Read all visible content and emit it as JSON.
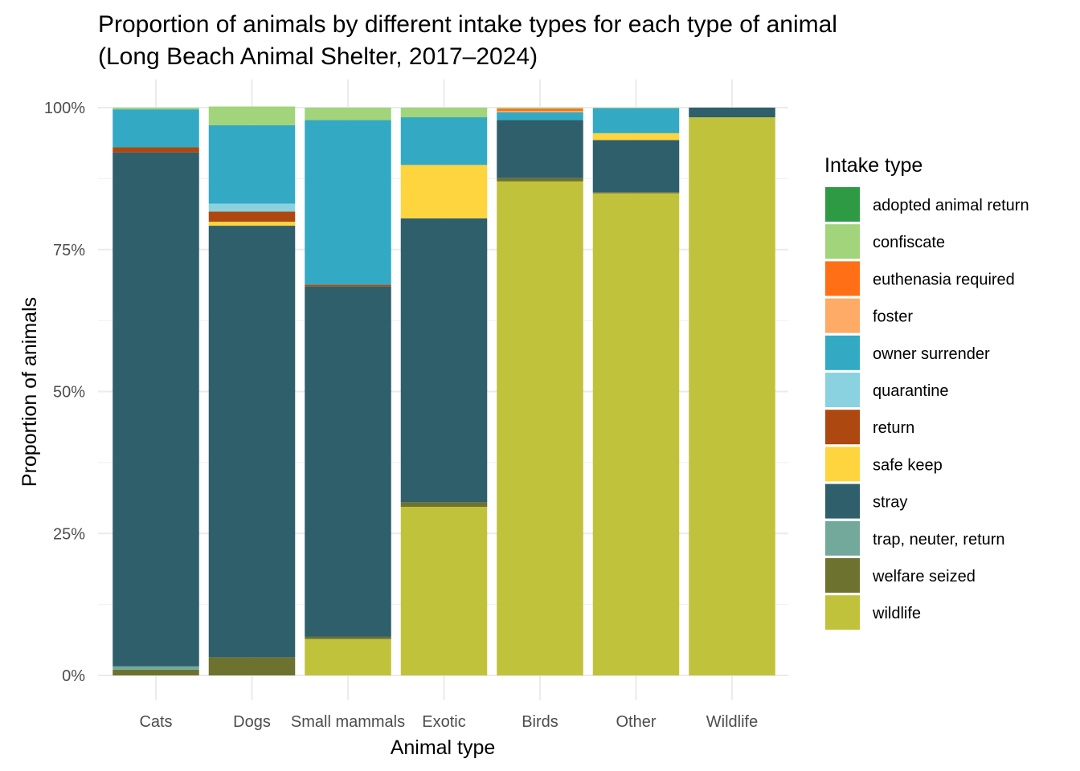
{
  "chart_data": {
    "type": "bar",
    "stacked": true,
    "normalized": true,
    "title": "Proportion of animals by different intake types for each type of animal",
    "subtitle": "(Long Beach Animal Shelter, 2017–2024)",
    "xlabel": "Animal type",
    "ylabel": "Proportion of animals",
    "ylim": [
      0,
      1
    ],
    "y_ticks": [
      "0%",
      "25%",
      "50%",
      "75%",
      "100%"
    ],
    "grid": true,
    "legend_title": "Intake type",
    "legend_position": "right",
    "categories": [
      "Cats",
      "Dogs",
      "Small mammals",
      "Exotic",
      "Birds",
      "Other",
      "Wildlife"
    ],
    "series": [
      {
        "name": "adopted animal return",
        "color": "#2e9a43",
        "values": [
          0.0,
          0.0,
          0.0,
          0.0,
          0.0,
          0.0,
          0.0
        ]
      },
      {
        "name": "confiscate",
        "color": "#a1d47b",
        "values": [
          0.003,
          0.033,
          0.022,
          0.017,
          0.002,
          0.001,
          0.0
        ]
      },
      {
        "name": "euthenasia required",
        "color": "#ff6f15",
        "values": [
          0.0,
          0.0,
          0.0,
          0.0,
          0.004,
          0.0,
          0.0
        ]
      },
      {
        "name": "foster",
        "color": "#fdab66",
        "values": [
          0.0,
          0.0,
          0.0,
          0.0,
          0.002,
          0.0,
          0.0
        ]
      },
      {
        "name": "owner surrender",
        "color": "#33a9c3",
        "values": [
          0.067,
          0.138,
          0.29,
          0.084,
          0.014,
          0.044,
          0.0
        ]
      },
      {
        "name": "quarantine",
        "color": "#8ad2df",
        "values": [
          0.0,
          0.014,
          0.0,
          0.0,
          0.0,
          0.0,
          0.0
        ]
      },
      {
        "name": "return",
        "color": "#ad4810",
        "values": [
          0.009,
          0.018,
          0.003,
          0.0,
          0.0,
          0.0,
          0.0
        ]
      },
      {
        "name": "safe keep",
        "color": "#fed43f",
        "values": [
          0.0,
          0.007,
          0.0,
          0.094,
          0.0,
          0.012,
          0.0
        ]
      },
      {
        "name": "stray",
        "color": "#2e5f6b",
        "values": [
          0.905,
          0.76,
          0.617,
          0.5,
          0.102,
          0.092,
          0.017
        ]
      },
      {
        "name": "trap, neuter, return",
        "color": "#72a99a",
        "values": [
          0.006,
          0.0,
          0.0,
          0.0,
          0.0,
          0.0,
          0.0
        ]
      },
      {
        "name": "welfare seized",
        "color": "#6e722f",
        "values": [
          0.01,
          0.032,
          0.004,
          0.008,
          0.006,
          0.002,
          0.0
        ]
      },
      {
        "name": "wildlife",
        "color": "#c1c23c",
        "values": [
          0.0,
          0.0,
          0.064,
          0.297,
          0.87,
          0.849,
          0.983
        ]
      }
    ]
  }
}
